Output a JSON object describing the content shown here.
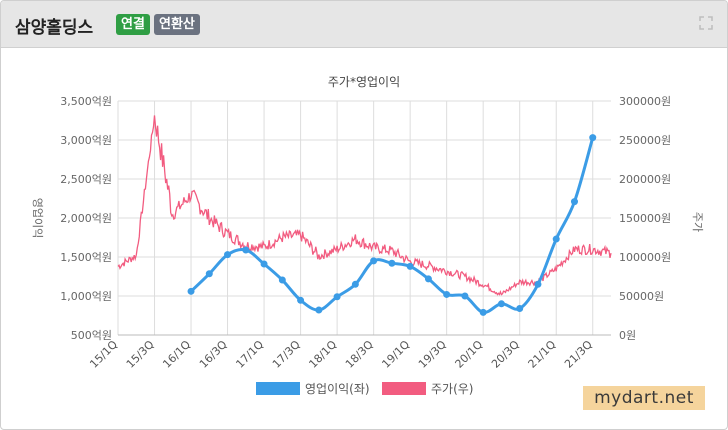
{
  "header": {
    "title": "삼양홀딩스",
    "badge_consolidated": "연결",
    "badge_annualized": "연환산",
    "expand_icon": "expand-icon"
  },
  "watermark": "mydart.net",
  "chart_data": {
    "type": "line",
    "title": "주가*영업이익",
    "ylabel": "영업이익",
    "y2label": "주가",
    "categories": [
      "15/1Q",
      "15/2Q",
      "15/3Q",
      "15/4Q",
      "16/1Q",
      "16/2Q",
      "16/3Q",
      "16/4Q",
      "17/1Q",
      "17/2Q",
      "17/3Q",
      "17/4Q",
      "18/1Q",
      "18/2Q",
      "18/3Q",
      "18/4Q",
      "19/1Q",
      "19/2Q",
      "19/3Q",
      "19/4Q",
      "20/1Q",
      "20/2Q",
      "20/3Q",
      "20/4Q",
      "21/1Q",
      "21/2Q",
      "21/3Q",
      "21/4Q"
    ],
    "x_tick_labels": [
      "15/1Q",
      "15/3Q",
      "16/1Q",
      "16/3Q",
      "17/1Q",
      "17/3Q",
      "18/1Q",
      "18/3Q",
      "19/1Q",
      "19/3Q",
      "20/1Q",
      "20/3Q",
      "21/1Q",
      "21/3Q"
    ],
    "y_left": {
      "min": 500,
      "max": 3500,
      "ticks": [
        500,
        1000,
        1500,
        2000,
        2500,
        3000,
        3500
      ],
      "tick_labels": [
        "500억원",
        "1,000억원",
        "1,500억원",
        "2,000억원",
        "2,500억원",
        "3,000억원",
        "3,500억원"
      ]
    },
    "y_right": {
      "min": 0,
      "max": 300000,
      "ticks": [
        0,
        50000,
        100000,
        150000,
        200000,
        250000,
        300000
      ],
      "tick_labels": [
        "0원",
        "50000원",
        "100000원",
        "150000원",
        "200000원",
        "250000원",
        "300000원"
      ]
    },
    "grid": true,
    "legend_position": "bottom",
    "series": [
      {
        "name": "영업이익(좌)",
        "axis": "left",
        "color": "#3b9ce6",
        "x": [
          "16/1Q",
          "16/2Q",
          "16/3Q",
          "16/4Q",
          "17/1Q",
          "17/2Q",
          "17/3Q",
          "17/4Q",
          "18/1Q",
          "18/2Q",
          "18/3Q",
          "18/4Q",
          "19/1Q",
          "19/2Q",
          "19/3Q",
          "19/4Q",
          "20/1Q",
          "20/2Q",
          "20/3Q",
          "20/4Q",
          "21/1Q",
          "21/2Q",
          "21/3Q"
        ],
        "values": [
          1060,
          1285,
          1530,
          1590,
          1410,
          1205,
          945,
          820,
          990,
          1150,
          1450,
          1420,
          1380,
          1220,
          1020,
          1000,
          790,
          900,
          840,
          1150,
          1730,
          2210,
          3030
        ]
      },
      {
        "name": "주가(우)",
        "axis": "right",
        "color": "#f25c80",
        "x": [
          "15/1Q",
          "15/2Q",
          "15/3Q",
          "15/4Q",
          "16/1Q",
          "16/2Q",
          "16/3Q",
          "16/4Q",
          "17/1Q",
          "17/2Q",
          "17/3Q",
          "17/4Q",
          "18/1Q",
          "18/2Q",
          "18/3Q",
          "18/4Q",
          "19/1Q",
          "19/2Q",
          "19/3Q",
          "19/4Q",
          "20/1Q",
          "20/2Q",
          "20/3Q",
          "20/4Q",
          "21/1Q",
          "21/2Q",
          "21/3Q",
          "21/4Q"
        ],
        "values": [
          88000,
          102000,
          280000,
          155000,
          180000,
          150000,
          130000,
          115000,
          113000,
          125000,
          128000,
          101000,
          110000,
          123000,
          112000,
          108000,
          94000,
          89000,
          82000,
          75000,
          65000,
          52000,
          68000,
          68000,
          85000,
          110000,
          110000,
          105000
        ]
      }
    ]
  }
}
